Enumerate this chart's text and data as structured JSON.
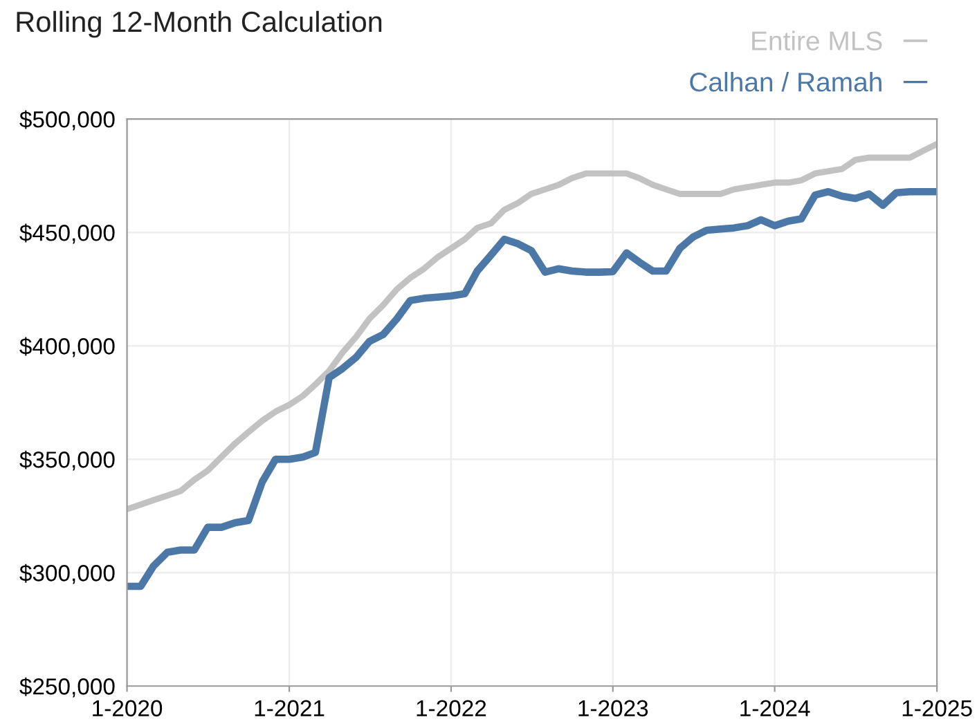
{
  "chart_data": {
    "type": "line",
    "title": "Rolling 12-Month Calculation",
    "x": [
      "2020-01",
      "2020-02",
      "2020-03",
      "2020-04",
      "2020-05",
      "2020-06",
      "2020-07",
      "2020-08",
      "2020-09",
      "2020-10",
      "2020-11",
      "2020-12",
      "2021-01",
      "2021-02",
      "2021-03",
      "2021-04",
      "2021-05",
      "2021-06",
      "2021-07",
      "2021-08",
      "2021-09",
      "2021-10",
      "2021-11",
      "2021-12",
      "2022-01",
      "2022-02",
      "2022-03",
      "2022-04",
      "2022-05",
      "2022-06",
      "2022-07",
      "2022-08",
      "2022-09",
      "2022-10",
      "2022-11",
      "2022-12",
      "2023-01",
      "2023-02",
      "2023-03",
      "2023-04",
      "2023-05",
      "2023-06",
      "2023-07",
      "2023-08",
      "2023-09",
      "2023-10",
      "2023-11",
      "2023-12",
      "2024-01",
      "2024-02",
      "2024-03",
      "2024-04",
      "2024-05",
      "2024-06",
      "2024-07",
      "2024-08",
      "2024-09",
      "2024-10",
      "2024-11",
      "2024-12",
      "2025-01"
    ],
    "series": [
      {
        "name": "Entire MLS",
        "color": "#c2c2c2",
        "values": [
          328000,
          330000,
          332000,
          334000,
          336000,
          341000,
          345000,
          351000,
          357000,
          362000,
          367000,
          371000,
          374000,
          378000,
          383000,
          389000,
          397000,
          404000,
          412000,
          418000,
          425000,
          430000,
          434000,
          439000,
          443000,
          447000,
          452000,
          454000,
          460000,
          463000,
          467000,
          469000,
          471000,
          474000,
          476000,
          476000,
          476000,
          476000,
          474000,
          471000,
          469000,
          467000,
          467000,
          467000,
          467000,
          469000,
          470000,
          471000,
          472000,
          472000,
          473000,
          476000,
          477000,
          478000,
          482000,
          483000,
          483000,
          483000,
          483000,
          486000,
          489000
        ]
      },
      {
        "name": "Calhan / Ramah",
        "color": "#4b78a6",
        "values": [
          294000,
          294000,
          303000,
          309000,
          310000,
          310000,
          320000,
          320000,
          322000,
          323000,
          340000,
          350000,
          350000,
          351000,
          353000,
          386000,
          390000,
          395000,
          402000,
          405000,
          412000,
          420000,
          421000,
          421500,
          422000,
          423000,
          433000,
          440000,
          447000,
          445000,
          442000,
          432500,
          434000,
          433000,
          432500,
          432500,
          432700,
          441000,
          437000,
          433000,
          433000,
          443000,
          448000,
          451000,
          451500,
          452000,
          453000,
          455600,
          453000,
          455000,
          456000,
          466500,
          468000,
          466000,
          465000,
          467000,
          462000,
          467500,
          468000,
          468000,
          468000
        ]
      }
    ],
    "xlim": [
      "2020-01",
      "2025-01"
    ],
    "xticks": [
      {
        "value": "2020-01",
        "label": "1-2020"
      },
      {
        "value": "2021-01",
        "label": "1-2021"
      },
      {
        "value": "2022-01",
        "label": "1-2022"
      },
      {
        "value": "2023-01",
        "label": "1-2023"
      },
      {
        "value": "2024-01",
        "label": "1-2024"
      },
      {
        "value": "2025-01",
        "label": "1-2025"
      }
    ],
    "ylim": [
      250000,
      500000
    ],
    "yticks": [
      {
        "value": 250000,
        "label": "$250,000"
      },
      {
        "value": 300000,
        "label": "$300,000"
      },
      {
        "value": 350000,
        "label": "$350,000"
      },
      {
        "value": 400000,
        "label": "$400,000"
      },
      {
        "value": 450000,
        "label": "$450,000"
      },
      {
        "value": 500000,
        "label": "$500,000"
      }
    ],
    "grid": true,
    "legend": "top right",
    "line_style": "solid"
  }
}
